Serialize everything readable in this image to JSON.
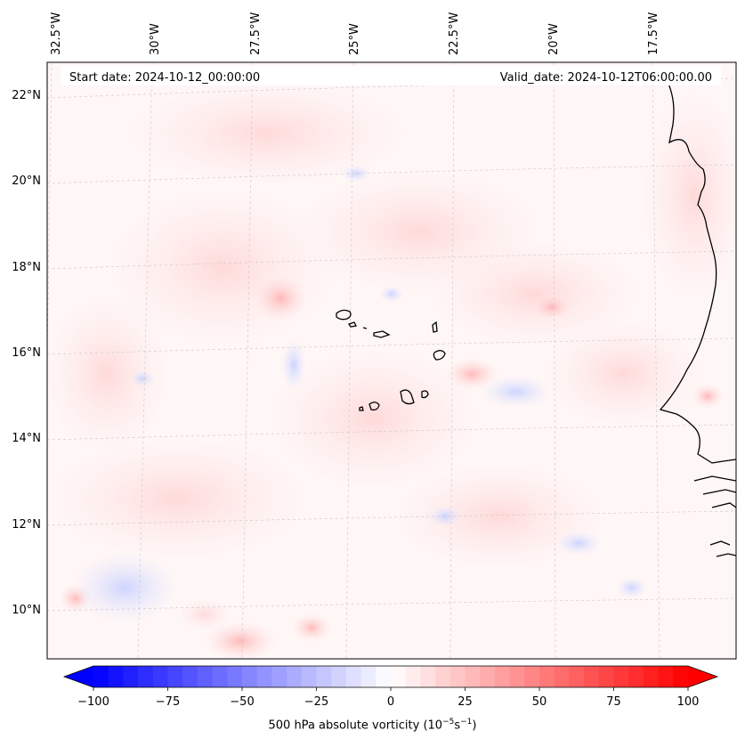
{
  "map": {
    "start_date": "Start date: 2024-10-12_00:00:00",
    "valid_date": "Valid_date: 2024-10-12T06:00:00.00",
    "longitude_labels": [
      "32.5°W",
      "30°W",
      "27.5°W",
      "25°W",
      "22.5°W",
      "20°W",
      "17.5°W"
    ],
    "latitude_labels": [
      "22°N",
      "20°N",
      "18°N",
      "16°N",
      "14°N",
      "12°N",
      "10°N"
    ]
  },
  "colorbar": {
    "label_prefix": "500 hPa absolute vorticity (10",
    "label_exp1": "−5",
    "label_mid": "s",
    "label_exp2": "−1",
    "label_suffix": ")",
    "ticks": [
      "−100",
      "−75",
      "−50",
      "−25",
      "0",
      "25",
      "50",
      "75",
      "100"
    ],
    "min": -100,
    "max": 100,
    "colors": {
      "negative": "#0000ff",
      "neutral": "#ffffff",
      "positive": "#ff0000"
    }
  }
}
